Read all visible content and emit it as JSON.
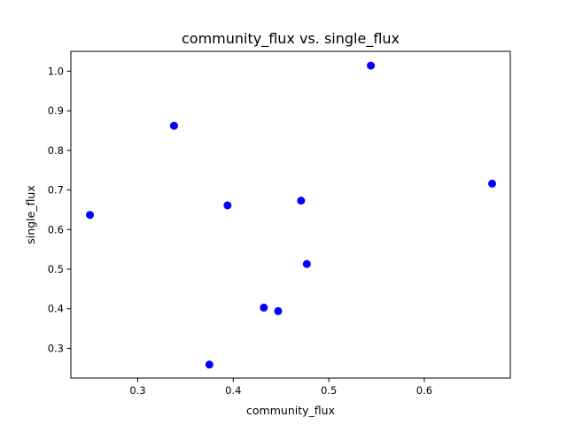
{
  "chart_data": {
    "type": "scatter",
    "title": "community_flux vs. single_flux",
    "xlabel": "community_flux",
    "ylabel": "single_flux",
    "xlim": [
      0.23,
      0.69
    ],
    "ylim": [
      0.225,
      1.05
    ],
    "xticks": [
      0.3,
      0.4,
      0.5,
      0.6
    ],
    "xtick_labels": [
      "0.3",
      "0.4",
      "0.5",
      "0.6"
    ],
    "yticks": [
      0.3,
      0.4,
      0.5,
      0.6,
      0.7,
      0.8,
      0.9,
      1.0
    ],
    "ytick_labels": [
      "0.3",
      "0.4",
      "0.5",
      "0.6",
      "0.7",
      "0.8",
      "0.9",
      "1.0"
    ],
    "grid": false,
    "marker_color": "#0000ff",
    "series": [
      {
        "x": [
          0.25,
          0.338,
          0.375,
          0.394,
          0.432,
          0.447,
          0.471,
          0.477,
          0.544,
          0.671
        ],
        "y": [
          0.637,
          0.862,
          0.259,
          0.661,
          0.403,
          0.394,
          0.673,
          0.513,
          1.014,
          0.716
        ]
      }
    ]
  }
}
